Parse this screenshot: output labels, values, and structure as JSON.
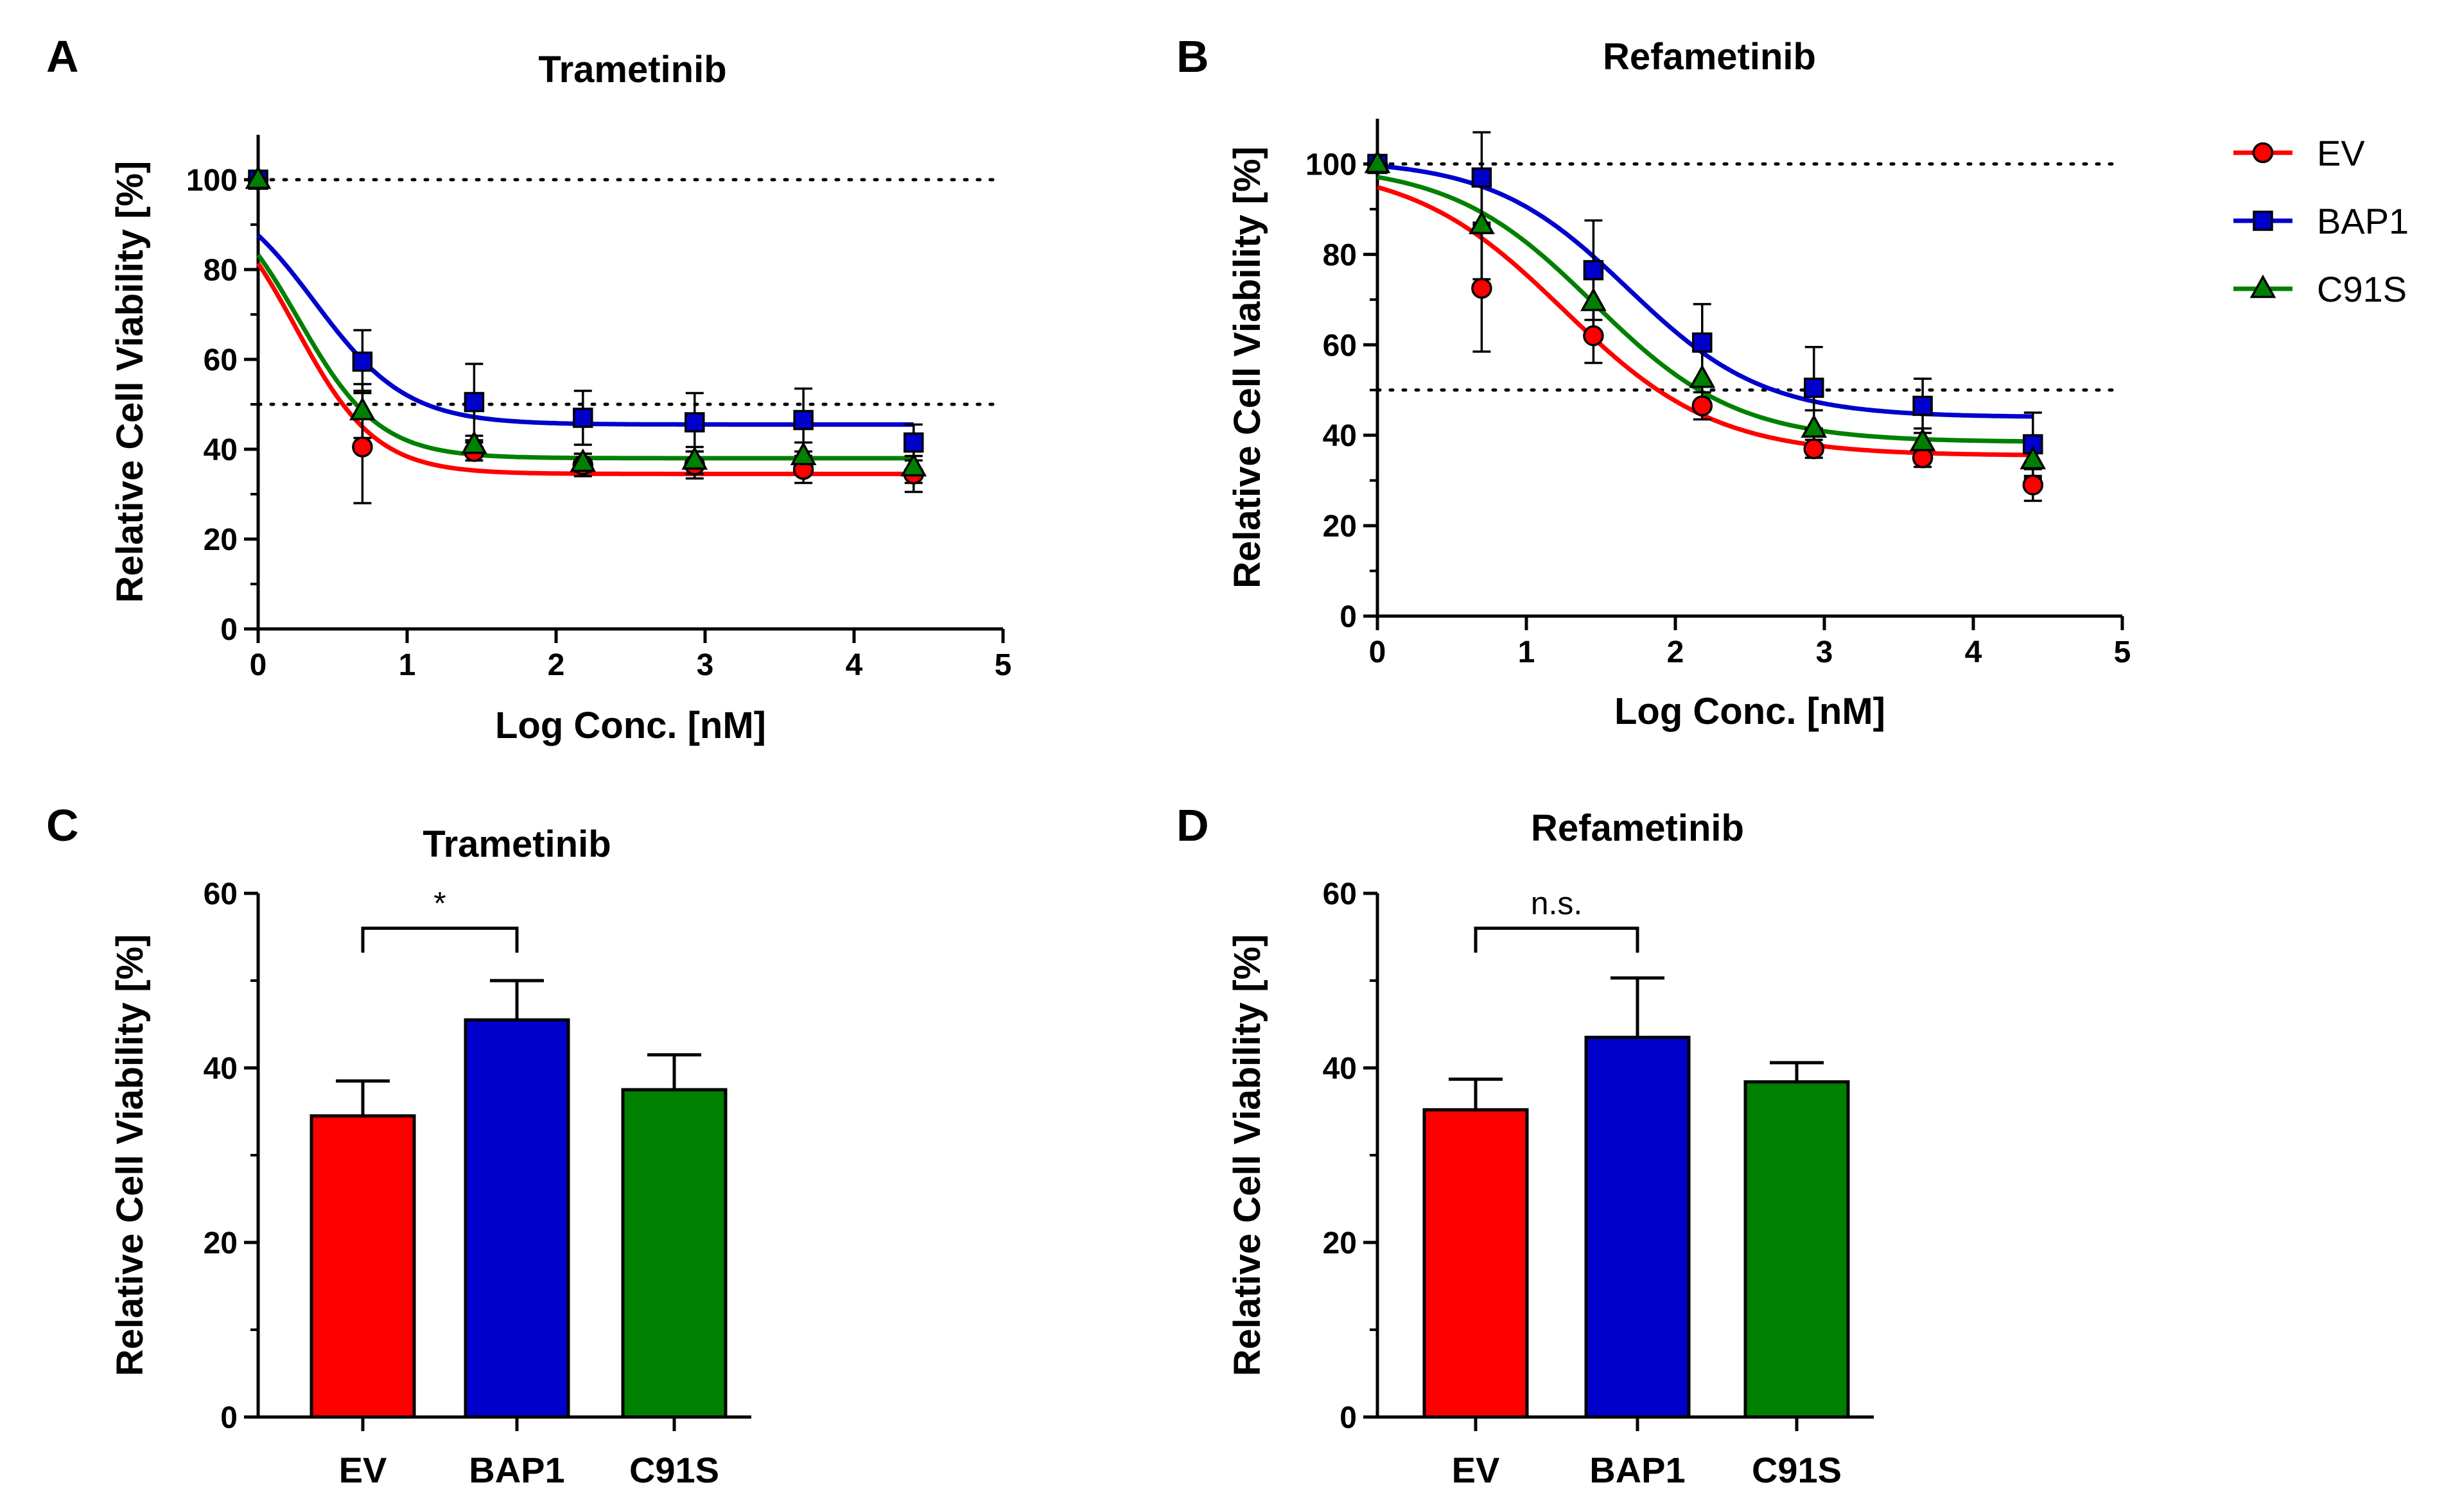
{
  "panels": {
    "A": {
      "letter": "A",
      "title": "Trametinib"
    },
    "B": {
      "letter": "B",
      "title": "Refametinib"
    },
    "C": {
      "letter": "C",
      "title": "Trametinib"
    },
    "D": {
      "letter": "D",
      "title": "Refametinib"
    }
  },
  "legend": [
    {
      "name": "EV",
      "marker": "circle",
      "color": "#ff0000"
    },
    {
      "name": "BAP1",
      "marker": "square",
      "color": "#0000cc"
    },
    {
      "name": "C91S",
      "marker": "triangle",
      "color": "#008000"
    }
  ],
  "chart_data": [
    {
      "id": "A",
      "type": "line",
      "title": "Trametinib",
      "xlabel": "Log Conc. [nM]",
      "ylabel": "Relative Cell Viability [%]",
      "xlim": [
        0,
        5
      ],
      "ylim": [
        0,
        110
      ],
      "xticks": [
        0,
        1,
        2,
        3,
        4,
        5
      ],
      "yticks": [
        0,
        20,
        40,
        60,
        80,
        100
      ],
      "reference_lines": [
        100,
        50
      ],
      "x": [
        0,
        0.7,
        1.45,
        2.18,
        2.93,
        3.66,
        4.4
      ],
      "series": [
        {
          "name": "EV",
          "color": "#ff0000",
          "marker": "circle",
          "values": [
            100,
            40.5,
            39.5,
            36.5,
            36.5,
            35.5,
            34.5
          ],
          "errors": [
            0,
            12.5,
            2,
            2.5,
            3,
            3,
            4
          ],
          "fit": {
            "bottom": 34.5,
            "top": 100,
            "log_ic50": 0.25,
            "hill": 1.6
          }
        },
        {
          "name": "BAP1",
          "color": "#0000cc",
          "marker": "square",
          "values": [
            100,
            59.5,
            50.5,
            47,
            46,
            46.5,
            41.5
          ],
          "errors": [
            0,
            7,
            8.5,
            6,
            6.5,
            7,
            4
          ],
          "fit": {
            "bottom": 45.5,
            "top": 100,
            "log_ic50": 0.38,
            "hill": 1.4
          }
        },
        {
          "name": "C91S",
          "color": "#008000",
          "marker": "triangle",
          "values": [
            100,
            48.5,
            41,
            37,
            37.5,
            38.5,
            36
          ],
          "errors": [
            0,
            6,
            2,
            2,
            3,
            3,
            3.5
          ],
          "fit": {
            "bottom": 38,
            "top": 100,
            "log_ic50": 0.27,
            "hill": 1.6
          }
        }
      ]
    },
    {
      "id": "B",
      "type": "line",
      "title": "Refametinib",
      "xlabel": "Log Conc. [nM]",
      "ylabel": "Relative Cell Viability [%]",
      "xlim": [
        0,
        5
      ],
      "ylim": [
        0,
        110
      ],
      "xticks": [
        0,
        1,
        2,
        3,
        4,
        5
      ],
      "yticks": [
        0,
        20,
        40,
        60,
        80,
        100
      ],
      "reference_lines": [
        100,
        50
      ],
      "x": [
        0,
        0.7,
        1.45,
        2.18,
        2.93,
        3.66,
        4.4
      ],
      "series": [
        {
          "name": "EV",
          "color": "#ff0000",
          "marker": "circle",
          "values": [
            100,
            72.5,
            62,
            46.5,
            37,
            35,
            29
          ],
          "errors": [
            0,
            14,
            6,
            3,
            2,
            2,
            3.5
          ],
          "fit": {
            "bottom": 35.5,
            "top": 100,
            "log_ic50": 1.25,
            "hill": 0.85
          }
        },
        {
          "name": "BAP1",
          "color": "#0000cc",
          "marker": "square",
          "values": [
            100,
            97,
            76.5,
            60.5,
            50.5,
            46.5,
            38
          ],
          "errors": [
            0,
            10,
            11,
            8.5,
            9,
            6,
            7
          ],
          "fit": {
            "bottom": 44,
            "top": 101,
            "log_ic50": 1.68,
            "hill": 0.95
          }
        },
        {
          "name": "C91S",
          "color": "#008000",
          "marker": "triangle",
          "values": [
            100,
            86.5,
            69.5,
            52.5,
            41.5,
            38.5,
            34.5
          ],
          "errors": [
            0,
            12,
            7,
            6,
            4,
            3,
            4
          ],
          "fit": {
            "bottom": 38.5,
            "top": 100,
            "log_ic50": 1.45,
            "hill": 0.9
          }
        }
      ]
    },
    {
      "id": "C",
      "type": "bar",
      "title": "Trametinib",
      "xlabel": "",
      "ylabel": "Relative Cell Viability [%]",
      "ylim": [
        0,
        60
      ],
      "yticks": [
        0,
        20,
        40,
        60
      ],
      "categories": [
        "EV",
        "BAP1",
        "C91S"
      ],
      "values": [
        34.5,
        45.5,
        37.5
      ],
      "errors": [
        4,
        4.5,
        4
      ],
      "colors": [
        "#ff0000",
        "#0000cc",
        "#008000"
      ],
      "significance": {
        "from": "EV",
        "to": "BAP1",
        "label": "*"
      }
    },
    {
      "id": "D",
      "type": "bar",
      "title": "Refametinib",
      "xlabel": "",
      "ylabel": "Relative Cell Viability [%]",
      "ylim": [
        0,
        60
      ],
      "yticks": [
        0,
        20,
        40,
        60
      ],
      "categories": [
        "EV",
        "BAP1",
        "C91S"
      ],
      "values": [
        35.2,
        43.5,
        38.4
      ],
      "errors": [
        3.5,
        6.8,
        2.2
      ],
      "colors": [
        "#ff0000",
        "#0000cc",
        "#008000"
      ],
      "significance": {
        "from": "EV",
        "to": "BAP1",
        "label": "n.s."
      }
    }
  ]
}
